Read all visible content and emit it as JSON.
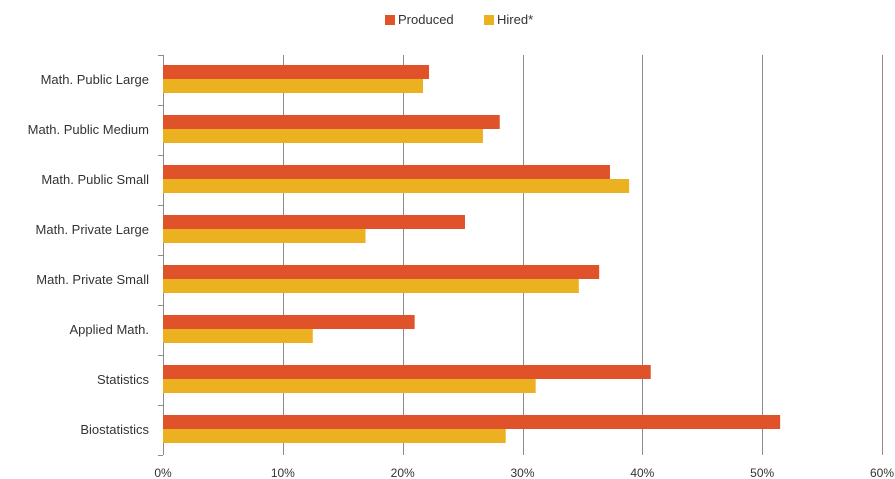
{
  "chart_data": {
    "type": "bar",
    "orientation": "horizontal",
    "categories": [
      "Math. Public Large",
      "Math. Public Medium",
      "Math. Public Small",
      "Math. Private Large",
      "Math. Private Small",
      "Applied Math.",
      "Statistics",
      "Biostatistics"
    ],
    "series": [
      {
        "name": "Produced",
        "color": "#e0522a",
        "values": [
          22.2,
          28.1,
          37.3,
          25.2,
          36.4,
          21.0,
          40.7,
          51.5
        ]
      },
      {
        "name": "Hired*",
        "color": "#ecb120",
        "values": [
          21.7,
          26.7,
          38.9,
          16.9,
          34.7,
          12.5,
          31.1,
          28.6
        ]
      }
    ],
    "xlim": [
      0,
      60
    ],
    "x_ticks": [
      0,
      10,
      20,
      30,
      40,
      50,
      60
    ],
    "x_tick_labels": [
      "0%",
      "10%",
      "20%",
      "30%",
      "40%",
      "50%",
      "60%"
    ],
    "grid": "vertical",
    "legend_position": "top-center",
    "title": "",
    "xlabel": "",
    "ylabel": ""
  }
}
